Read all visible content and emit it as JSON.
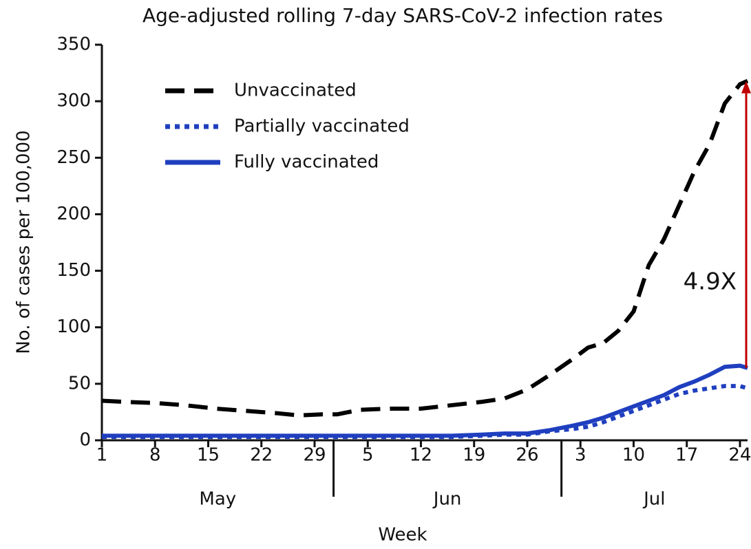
{
  "chart_data": {
    "type": "line",
    "title": "Age-adjusted rolling 7-day SARS-CoV-2 infection rates",
    "xlabel": "Week",
    "ylabel": "No. of cases per 100,000",
    "x": [
      1,
      4,
      8,
      12,
      16,
      20,
      24,
      27,
      30,
      32,
      35,
      39,
      43,
      47,
      51,
      54,
      57,
      60,
      63,
      65,
      67,
      69,
      71,
      73,
      75,
      77,
      79,
      81,
      83,
      85,
      86
    ],
    "series": [
      {
        "name": "Unvaccinated",
        "color": "#000000",
        "dash": "dashed",
        "values": [
          35,
          34,
          33,
          31,
          28,
          26,
          24,
          22,
          23,
          23,
          27,
          28,
          28,
          31,
          34,
          37,
          45,
          58,
          72,
          82,
          86,
          97,
          114,
          155,
          178,
          208,
          238,
          262,
          298,
          315,
          318
        ]
      },
      {
        "name": "Partially vaccinated",
        "color": "#1f3fbf",
        "dash": "dotted",
        "values": [
          3,
          3,
          3,
          3,
          3,
          3,
          3,
          3,
          3,
          3,
          3,
          3,
          3,
          3,
          4,
          5,
          5,
          8,
          10,
          12,
          16,
          21,
          26,
          31,
          36,
          41,
          44,
          46,
          48,
          48,
          46
        ]
      },
      {
        "name": "Fully vaccinated",
        "color": "#1f3fbf",
        "dash": "solid",
        "values": [
          4,
          4,
          4,
          4,
          4,
          4,
          4,
          4,
          4,
          4,
          4,
          4,
          4,
          4,
          5,
          6,
          6,
          9,
          13,
          16,
          20,
          25,
          30,
          35,
          40,
          47,
          52,
          58,
          65,
          66,
          64
        ]
      }
    ],
    "xlim": [
      1,
      86
    ],
    "xticks": [
      {
        "value": 1,
        "label": "1"
      },
      {
        "value": 8,
        "label": "8"
      },
      {
        "value": 15,
        "label": "15"
      },
      {
        "value": 22,
        "label": "22"
      },
      {
        "value": 29,
        "label": "29"
      },
      {
        "value": 36,
        "label": "5"
      },
      {
        "value": 43,
        "label": "12"
      },
      {
        "value": 50,
        "label": "19"
      },
      {
        "value": 57,
        "label": "26"
      },
      {
        "value": 64,
        "label": "3"
      },
      {
        "value": 71,
        "label": "10"
      },
      {
        "value": 78,
        "label": "17"
      },
      {
        "value": 85,
        "label": "24"
      }
    ],
    "months": [
      {
        "label": "May",
        "from": 1,
        "to": 31.5
      },
      {
        "label": "Jun",
        "from": 31.5,
        "to": 61.5
      },
      {
        "label": "Jul",
        "from": 61.5,
        "to": 86
      }
    ],
    "ylim": [
      0,
      350
    ],
    "yticks": [
      0,
      50,
      100,
      150,
      200,
      250,
      300,
      350
    ],
    "legend": "upper left",
    "annotation": {
      "text": "4.9X",
      "color": "#c00000"
    }
  }
}
